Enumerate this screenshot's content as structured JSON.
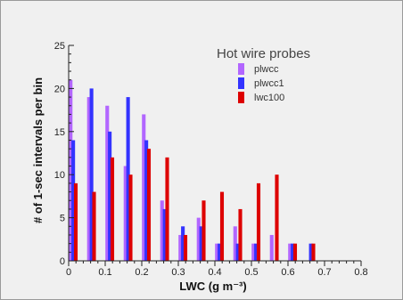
{
  "chart_data": {
    "type": "bar",
    "title": "",
    "xlabel": "LWC (g m⁻³)",
    "ylabel": "# of 1-sec intervals per bin",
    "xlim": [
      0,
      0.8
    ],
    "ylim": [
      0,
      25
    ],
    "xticks": [
      "0",
      "0.1",
      "0.2",
      "0.3",
      "0.4",
      "0.5",
      "0.6",
      "0.7",
      "0.8"
    ],
    "yticks": [
      "0",
      "5",
      "10",
      "15",
      "20",
      "25"
    ],
    "grid": false,
    "legend": {
      "title": "Hot wire probes",
      "placement": "top-right"
    },
    "bin_starts": [
      0.0,
      0.025,
      0.05,
      0.075,
      0.1,
      0.125,
      0.15,
      0.175,
      0.2,
      0.225,
      0.25,
      0.275,
      0.3,
      0.325,
      0.35,
      0.375,
      0.4,
      0.425,
      0.45,
      0.475,
      0.5,
      0.525,
      0.55,
      0.575,
      0.6,
      0.625,
      0.65,
      0.675
    ],
    "bin_width": 0.025,
    "series": [
      {
        "name": "plwcc",
        "color": "#b266ff",
        "values": [
          21,
          0,
          19,
          0,
          18,
          0,
          11,
          0,
          17,
          0,
          7,
          0,
          3,
          0,
          5,
          0,
          2,
          0,
          4,
          0,
          2,
          0,
          3,
          0,
          2,
          0,
          0,
          0
        ]
      },
      {
        "name": "plwcc1",
        "color": "#3333ff",
        "values": [
          14,
          0,
          20,
          0,
          15,
          0,
          19,
          0,
          14,
          0,
          6,
          0,
          4,
          0,
          4,
          0,
          2,
          0,
          2,
          0,
          2,
          0,
          0,
          0,
          2,
          0,
          2,
          0
        ]
      },
      {
        "name": "lwc100",
        "color": "#dd0000",
        "values": [
          9,
          0,
          8,
          0,
          12,
          0,
          10,
          0,
          13,
          0,
          12,
          0,
          3,
          0,
          7,
          0,
          8,
          0,
          6,
          0,
          9,
          0,
          10,
          0,
          2,
          0,
          2,
          0
        ]
      }
    ]
  }
}
